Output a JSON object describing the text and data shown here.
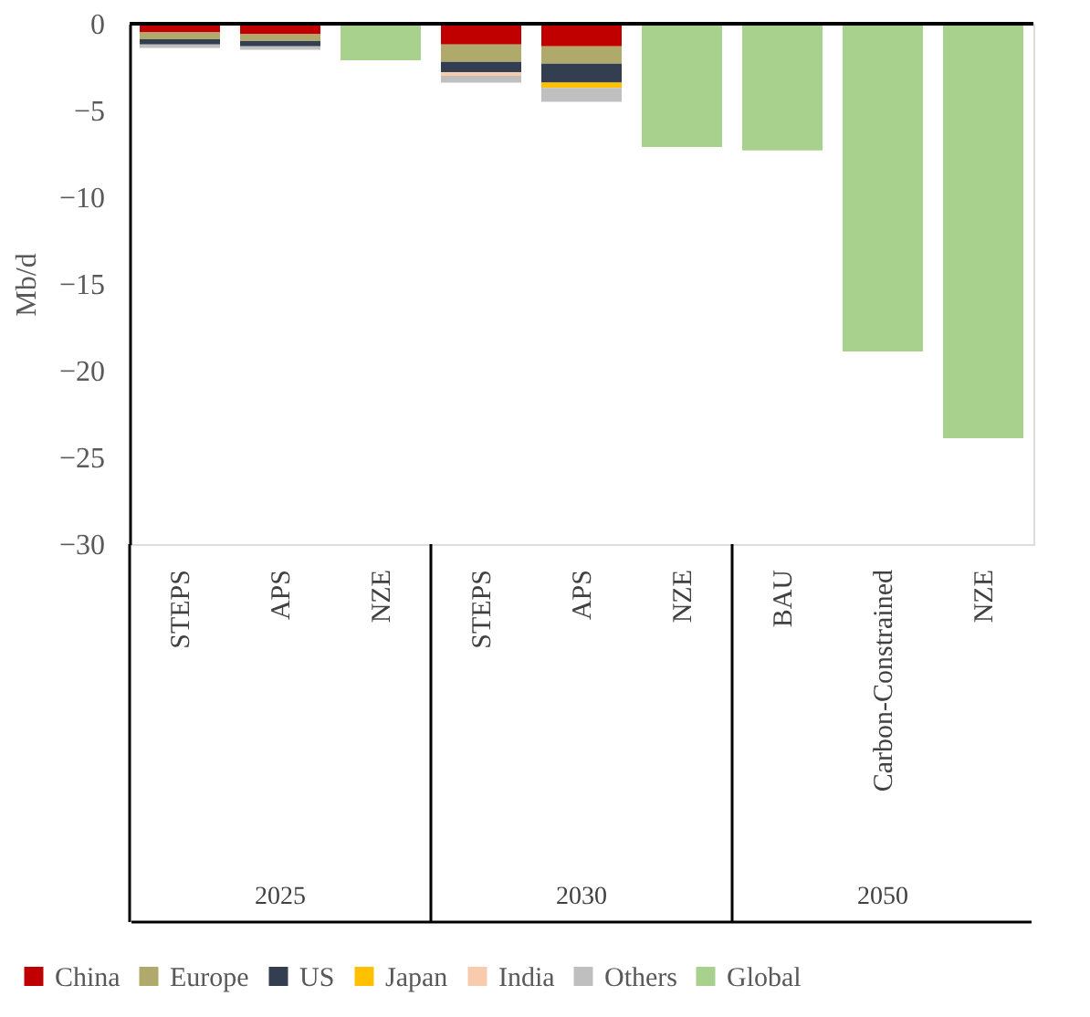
{
  "chart_data": {
    "type": "bar",
    "stacked": true,
    "ylabel": "Mb/d",
    "categories": [
      "STEPS",
      "APS",
      "NZE",
      "STEPS",
      "APS",
      "NZE",
      "BAU",
      "Carbon-Constrained",
      "NZE"
    ],
    "annotations": [
      "2025",
      "2030",
      "2050"
    ],
    "series": [
      {
        "name": "China",
        "color": "#c00000",
        "values": [
          -0.5,
          -0.6,
          null,
          -1.2,
          -1.3,
          null,
          null,
          null,
          null
        ]
      },
      {
        "name": "Europe",
        "color": "#b0a96c",
        "values": [
          -0.4,
          -0.4,
          null,
          -1.0,
          -1.0,
          null,
          null,
          null,
          null
        ]
      },
      {
        "name": "US",
        "color": "#333f50",
        "values": [
          -0.3,
          -0.3,
          null,
          -0.6,
          -1.1,
          null,
          null,
          null,
          null
        ]
      },
      {
        "name": "Japan",
        "color": "#ffc000",
        "values": [
          null,
          null,
          null,
          null,
          -0.3,
          null,
          null,
          null,
          null
        ]
      },
      {
        "name": "India",
        "color": "#f8cbad",
        "values": [
          null,
          null,
          null,
          -0.2,
          null,
          null,
          null,
          null,
          null
        ]
      },
      {
        "name": "Others",
        "color": "#bfbfbf",
        "values": [
          -0.2,
          -0.2,
          null,
          -0.4,
          -0.8,
          null,
          null,
          null,
          null
        ]
      },
      {
        "name": "Global",
        "color": "#a9d18e",
        "values": [
          null,
          null,
          -2.1,
          null,
          null,
          -7.1,
          -7.3,
          -18.9,
          -23.9
        ]
      }
    ],
    "ylim": [
      -30,
      0
    ],
    "yticks": [
      0,
      -5,
      -10,
      -15,
      -20,
      -25,
      -30
    ],
    "grid": false,
    "legend": "bottom"
  }
}
